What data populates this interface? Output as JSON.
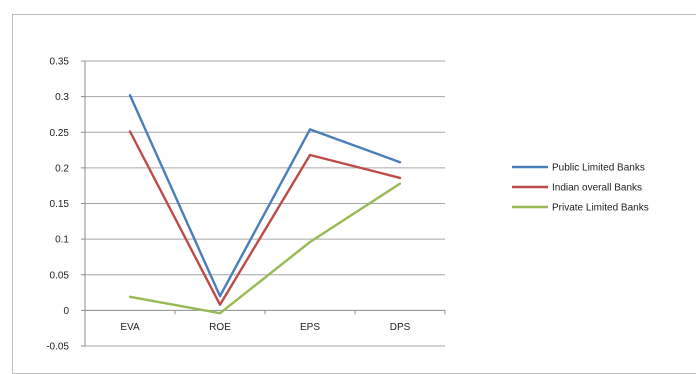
{
  "chart_data": {
    "type": "line",
    "categories": [
      "EVA",
      "ROE",
      "EPS",
      "DPS"
    ],
    "series": [
      {
        "name": "Public Limited Banks",
        "values": [
          0.302,
          0.02,
          0.254,
          0.208
        ],
        "color": "#4a7ebb"
      },
      {
        "name": "Indian overall Banks",
        "values": [
          0.251,
          0.008,
          0.218,
          0.186
        ],
        "color": "#be4b48"
      },
      {
        "name": "Private Limited Banks",
        "values": [
          0.019,
          -0.004,
          0.096,
          0.178
        ],
        "color": "#98b954"
      }
    ],
    "y_ticks": [
      "0.35",
      "0.3",
      "0.25",
      "0.2",
      "0.15",
      "0.1",
      "0.05",
      "0",
      "-0.05"
    ],
    "ylim": [
      -0.05,
      0.35
    ],
    "grid": true,
    "legend_position": "right"
  }
}
